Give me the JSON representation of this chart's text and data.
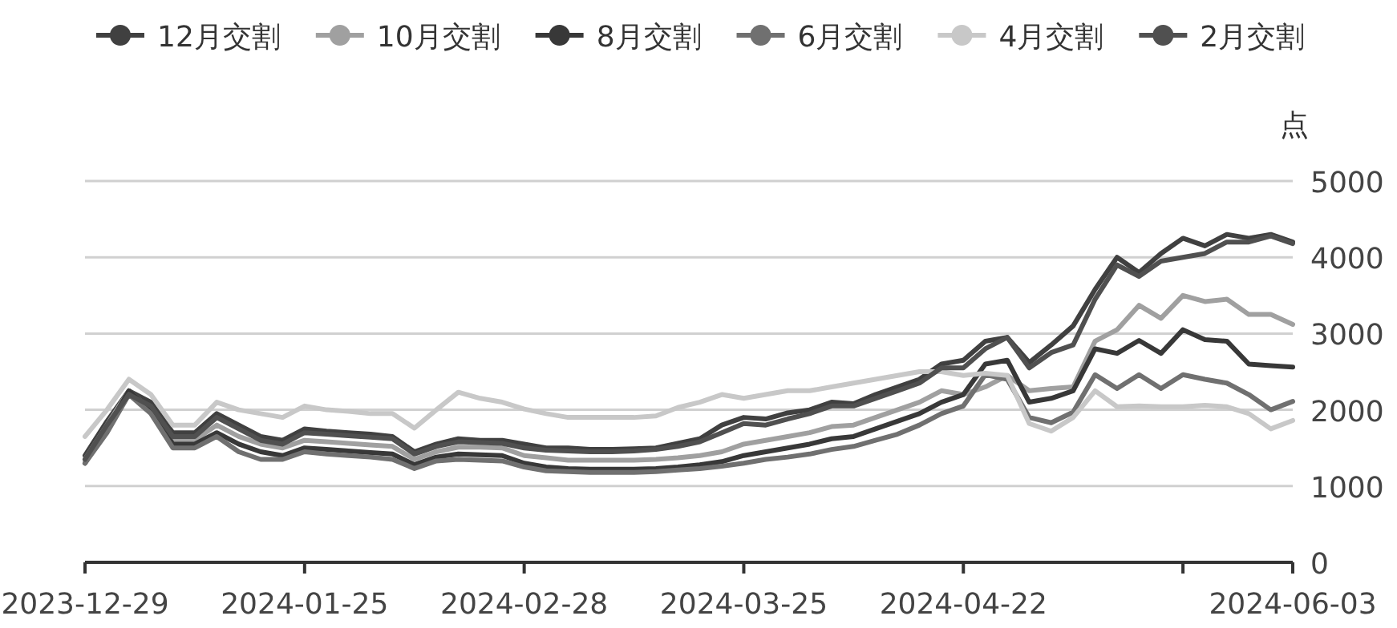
{
  "chart_data": {
    "type": "line",
    "ylabel": "点",
    "legend": "top",
    "grid": "y",
    "categories": [
      "2023-12-29",
      null,
      null,
      null,
      null,
      null,
      null,
      null,
      null,
      null,
      "2024-01-25",
      null,
      null,
      null,
      null,
      null,
      null,
      null,
      null,
      null,
      "2024-02-28",
      null,
      null,
      null,
      null,
      null,
      null,
      null,
      null,
      null,
      "2024-03-25",
      null,
      null,
      null,
      null,
      null,
      null,
      null,
      null,
      null,
      "2024-04-22",
      null,
      null,
      null,
      null,
      null,
      null,
      null,
      null,
      null,
      null,
      null,
      null,
      null,
      null,
      "2024-06-03"
    ],
    "ylim": [
      0,
      5000
    ],
    "yticks": [
      0,
      1000,
      2000,
      3000,
      4000,
      5000
    ],
    "series": [
      {
        "name": "12月交割",
        "color": "#404040",
        "values": [
          1400,
          1850,
          2250,
          2100,
          1700,
          1700,
          1950,
          1800,
          1650,
          1600,
          1750,
          1720,
          1700,
          1680,
          1650,
          1450,
          1550,
          1620,
          1600,
          1600,
          1550,
          1500,
          1500,
          1480,
          1480,
          1490,
          1500,
          1560,
          1620,
          1800,
          1900,
          1880,
          1960,
          2000,
          2100,
          2080,
          2200,
          2300,
          2400,
          2600,
          2650,
          2900,
          2950,
          2620,
          2850,
          3100,
          3580,
          4000,
          3800,
          4050,
          4250,
          4150,
          4300,
          4250,
          4300,
          4200
        ]
      },
      {
        "name": "10月交割",
        "color": "#a0a0a0",
        "values": [
          1350,
          1800,
          2250,
          2000,
          1600,
          1600,
          1800,
          1650,
          1550,
          1500,
          1600,
          1580,
          1560,
          1540,
          1520,
          1350,
          1450,
          1510,
          1510,
          1500,
          1400,
          1370,
          1340,
          1340,
          1340,
          1340,
          1350,
          1370,
          1400,
          1450,
          1550,
          1600,
          1650,
          1700,
          1780,
          1800,
          1900,
          2000,
          2100,
          2250,
          2200,
          2300,
          2450,
          2250,
          2280,
          2300,
          2900,
          3050,
          3370,
          3200,
          3500,
          3420,
          3450,
          3250,
          3250,
          3120
        ]
      },
      {
        "name": "8月交割",
        "color": "#383838",
        "values": [
          1300,
          1750,
          2250,
          2000,
          1550,
          1550,
          1700,
          1550,
          1450,
          1400,
          1500,
          1480,
          1460,
          1440,
          1420,
          1280,
          1380,
          1420,
          1410,
          1400,
          1300,
          1250,
          1230,
          1220,
          1220,
          1220,
          1230,
          1250,
          1280,
          1320,
          1400,
          1450,
          1500,
          1550,
          1620,
          1650,
          1750,
          1850,
          1950,
          2100,
          2200,
          2600,
          2650,
          2100,
          2150,
          2250,
          2800,
          2740,
          2910,
          2740,
          3050,
          2920,
          2900,
          2600,
          2580,
          2560
        ]
      },
      {
        "name": "6月交割",
        "color": "#707070",
        "values": [
          1300,
          1700,
          2200,
          1950,
          1500,
          1500,
          1650,
          1450,
          1350,
          1350,
          1450,
          1420,
          1400,
          1380,
          1350,
          1230,
          1330,
          1350,
          1340,
          1330,
          1250,
          1200,
          1190,
          1180,
          1180,
          1180,
          1190,
          1210,
          1230,
          1260,
          1300,
          1350,
          1380,
          1420,
          1480,
          1520,
          1600,
          1680,
          1800,
          1950,
          2050,
          2460,
          2400,
          1900,
          1830,
          1970,
          2460,
          2280,
          2460,
          2280,
          2460,
          2400,
          2350,
          2200,
          2000,
          2110
        ]
      },
      {
        "name": "4月交割",
        "color": "#c8c8c8",
        "values": [
          1650,
          2000,
          2400,
          2200,
          1800,
          1800,
          2100,
          2000,
          1950,
          1900,
          2050,
          2000,
          1980,
          1950,
          1950,
          1760,
          2000,
          2230,
          2150,
          2100,
          2010,
          1950,
          1900,
          1900,
          1900,
          1900,
          1920,
          2030,
          2100,
          2200,
          2150,
          2200,
          2250,
          2250,
          2300,
          2350,
          2400,
          2450,
          2500,
          2500,
          2450,
          2480,
          2450,
          1820,
          1720,
          1900,
          2250,
          2040,
          2050,
          2040,
          2040,
          2060,
          2040,
          1950,
          1750,
          1860
        ]
      },
      {
        "name": "2月交割",
        "color": "#505050",
        "values": [
          1350,
          1800,
          2200,
          2050,
          1650,
          1650,
          1900,
          1750,
          1600,
          1550,
          1700,
          1680,
          1660,
          1640,
          1620,
          1420,
          1520,
          1580,
          1570,
          1560,
          1500,
          1470,
          1460,
          1450,
          1450,
          1460,
          1480,
          1520,
          1580,
          1700,
          1820,
          1800,
          1880,
          1950,
          2050,
          2050,
          2150,
          2250,
          2350,
          2550,
          2550,
          2800,
          2950,
          2550,
          2750,
          2850,
          3450,
          3900,
          3750,
          3950,
          4000,
          4050,
          4200,
          4200,
          4280,
          4180
        ]
      }
    ]
  }
}
